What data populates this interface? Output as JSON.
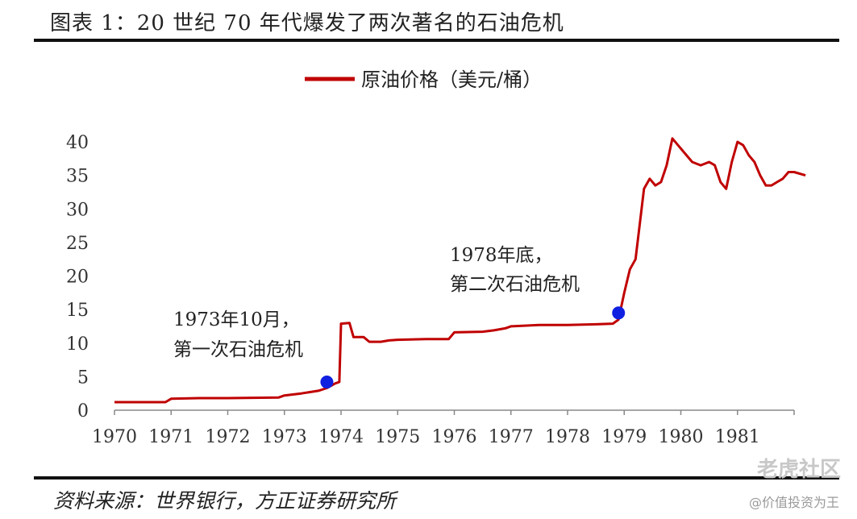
{
  "header": {
    "title": "图表 1：20 世纪 70 年代爆发了两次著名的石油危机"
  },
  "footer": {
    "source": "资料来源：世界银行，方正证券研究所",
    "watermark_brand": "老虎社区",
    "watermark_user": "@价值投资为王"
  },
  "chart_data": {
    "type": "line",
    "series": [
      {
        "name": "原油价格（美元/桶）",
        "color": "#c00000",
        "points": [
          [
            1970.0,
            1.2
          ],
          [
            1970.9,
            1.2
          ],
          [
            1971.0,
            1.7
          ],
          [
            1971.5,
            1.8
          ],
          [
            1972.0,
            1.8
          ],
          [
            1972.9,
            1.9
          ],
          [
            1973.0,
            2.2
          ],
          [
            1973.3,
            2.5
          ],
          [
            1973.6,
            2.9
          ],
          [
            1973.75,
            3.3
          ],
          [
            1973.9,
            4.0
          ],
          [
            1973.97,
            4.2
          ],
          [
            1974.0,
            12.9
          ],
          [
            1974.15,
            13.0
          ],
          [
            1974.22,
            10.9
          ],
          [
            1974.4,
            10.9
          ],
          [
            1974.5,
            10.2
          ],
          [
            1974.7,
            10.2
          ],
          [
            1974.85,
            10.4
          ],
          [
            1975.0,
            10.5
          ],
          [
            1975.5,
            10.6
          ],
          [
            1975.9,
            10.6
          ],
          [
            1976.0,
            11.6
          ],
          [
            1976.5,
            11.7
          ],
          [
            1976.7,
            11.9
          ],
          [
            1976.9,
            12.2
          ],
          [
            1977.0,
            12.5
          ],
          [
            1977.5,
            12.7
          ],
          [
            1978.0,
            12.7
          ],
          [
            1978.5,
            12.8
          ],
          [
            1978.8,
            12.9
          ],
          [
            1978.9,
            13.5
          ],
          [
            1979.0,
            17.5
          ],
          [
            1979.1,
            21.0
          ],
          [
            1979.2,
            22.5
          ],
          [
            1979.35,
            33.0
          ],
          [
            1979.45,
            34.5
          ],
          [
            1979.55,
            33.5
          ],
          [
            1979.65,
            34.0
          ],
          [
            1979.75,
            36.5
          ],
          [
            1979.85,
            40.5
          ],
          [
            1979.95,
            39.5
          ],
          [
            1980.05,
            38.5
          ],
          [
            1980.2,
            37.0
          ],
          [
            1980.35,
            36.5
          ],
          [
            1980.5,
            37.0
          ],
          [
            1980.6,
            36.5
          ],
          [
            1980.7,
            34.0
          ],
          [
            1980.8,
            33.0
          ],
          [
            1980.9,
            37.0
          ],
          [
            1981.0,
            40.0
          ],
          [
            1981.1,
            39.5
          ],
          [
            1981.2,
            38.0
          ],
          [
            1981.3,
            37.0
          ],
          [
            1981.4,
            35.0
          ],
          [
            1981.5,
            33.5
          ],
          [
            1981.6,
            33.5
          ],
          [
            1981.7,
            34.0
          ],
          [
            1981.8,
            34.5
          ],
          [
            1981.9,
            35.5
          ],
          [
            1982.0,
            35.5
          ],
          [
            1982.2,
            35.0
          ]
        ]
      }
    ],
    "markers": [
      {
        "x": 1973.75,
        "y": 4.2,
        "color": "#1020e0",
        "label_line1": "1973年10月，",
        "label_line2": "第一次石油危机"
      },
      {
        "x": 1978.9,
        "y": 14.5,
        "color": "#1020e0",
        "label_line1": "1978年底，",
        "label_line2": "第二次石油危机"
      }
    ],
    "x_ticks": [
      "1970",
      "1971",
      "1972",
      "1973",
      "1974",
      "1975",
      "1976",
      "1977",
      "1978",
      "1979",
      "1980",
      "1981"
    ],
    "y_ticks": [
      "0",
      "5",
      "10",
      "15",
      "20",
      "25",
      "30",
      "35",
      "40"
    ],
    "xlim": [
      1970,
      1982
    ],
    "ylim": [
      0,
      40
    ],
    "legend": "top-center",
    "grid": false
  }
}
